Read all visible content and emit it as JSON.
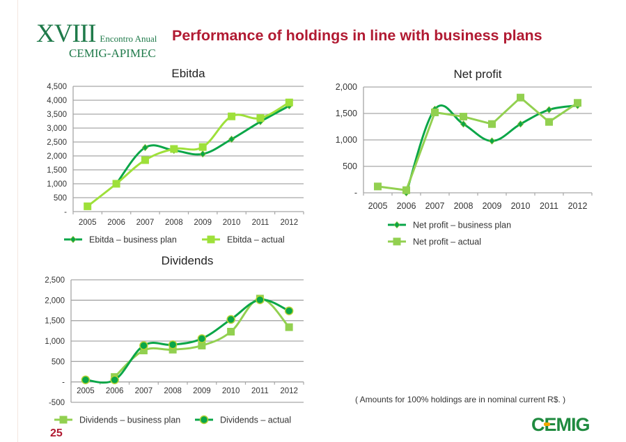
{
  "header": {
    "event_logo_roman": "XVIII",
    "event_logo_subtitle": "Encontro Anual",
    "event_logo_name": "CEMIG-APIMEC",
    "title": "Performance of holdings in line with business plans"
  },
  "footer": {
    "page_number": "25",
    "note": "( Amounts for 100% holdings are in nominal current R$. )",
    "brand_logo": "CEMIG"
  },
  "colors": {
    "dark_green": "#0aa648",
    "light_green": "#92d050",
    "lime": "#9ee03a",
    "title_red": "#b11a32",
    "grid": "#a6a6a6"
  },
  "chart_data": [
    {
      "type": "line",
      "title": "Ebitda",
      "categories": [
        "2005",
        "2006",
        "2007",
        "2008",
        "2009",
        "2010",
        "2011",
        "2012"
      ],
      "ylim": [
        0,
        4500
      ],
      "yticks": [
        0,
        500,
        1000,
        1500,
        2000,
        2500,
        3000,
        3500,
        4000,
        4500
      ],
      "ytick_labels": [
        "-",
        "500",
        "1,000",
        "1,500",
        "2,000",
        "2,500",
        "3,000",
        "3,500",
        "4,000",
        "4,500"
      ],
      "grid": true,
      "legend": "bottom",
      "series": [
        {
          "name": "Ebitda – business plan",
          "marker": "diamond",
          "smooth": true,
          "color": "#0aa648",
          "values": [
            null,
            1000,
            2300,
            2200,
            2070,
            2600,
            3230,
            3800
          ]
        },
        {
          "name": "Ebitda – actual",
          "marker": "square",
          "smooth": true,
          "color": "#9ee03a",
          "values": [
            190,
            1000,
            1850,
            2250,
            2320,
            3420,
            3360,
            3920
          ]
        }
      ]
    },
    {
      "type": "line",
      "title": "Net profit",
      "categories": [
        "2005",
        "2006",
        "2007",
        "2008",
        "2009",
        "2010",
        "2011",
        "2012"
      ],
      "ylim": [
        0,
        2000
      ],
      "yticks": [
        0,
        500,
        1000,
        1500,
        2000
      ],
      "ytick_labels": [
        "-",
        "500",
        "1,000",
        "1,500",
        "2,000"
      ],
      "grid": true,
      "legend": "bottom",
      "series": [
        {
          "name": "Net profit – business plan",
          "marker": "diamond",
          "smooth": true,
          "color": "#0aa648",
          "values": [
            null,
            0,
            1580,
            1300,
            980,
            1300,
            1570,
            1650
          ]
        },
        {
          "name": "Net profit – actual",
          "marker": "square",
          "smooth": false,
          "color": "#92d050",
          "values": [
            120,
            50,
            1520,
            1440,
            1300,
            1800,
            1340,
            1700
          ]
        }
      ]
    },
    {
      "type": "line",
      "title": "Dividends",
      "categories": [
        "2005",
        "2006",
        "2007",
        "2008",
        "2009",
        "2010",
        "2011",
        "2012"
      ],
      "ylim": [
        -500,
        2500
      ],
      "yticks": [
        -500,
        0,
        500,
        1000,
        1500,
        2000,
        2500
      ],
      "ytick_labels": [
        "-500",
        "-",
        "500",
        "1,000",
        "1,500",
        "2,000",
        "2,500"
      ],
      "grid": true,
      "legend": "bottom",
      "series": [
        {
          "name": "Dividends – business plan",
          "marker": "square",
          "smooth": true,
          "color": "#92d050",
          "values": [
            null,
            120,
            770,
            790,
            890,
            1230,
            2040,
            1340
          ]
        },
        {
          "name": "Dividends – actual",
          "marker": "circle",
          "smooth": true,
          "color": "#0aa648",
          "values": [
            50,
            50,
            890,
            910,
            1060,
            1530,
            2010,
            1740
          ]
        }
      ]
    }
  ]
}
